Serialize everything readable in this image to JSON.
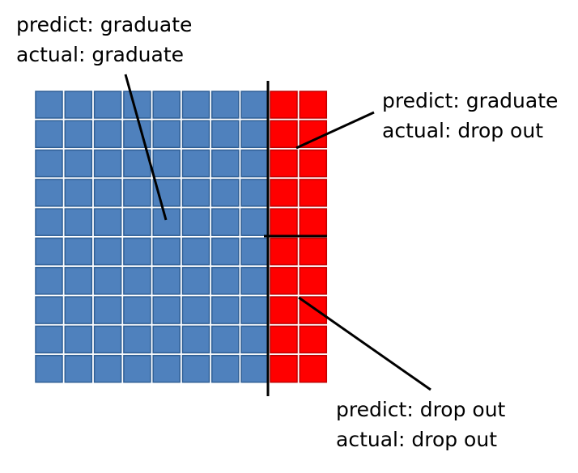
{
  "grid": {
    "rows": 10,
    "blue_columns": 8,
    "red_columns": 2,
    "colors": {
      "blue_fill": "#4f81bd",
      "blue_stroke": "#2f5f95",
      "red_fill": "#ff0000",
      "red_stroke": "#c00000",
      "divider": "#000000",
      "cell_border": "#ffffff"
    }
  },
  "annotations": {
    "top_left": {
      "predict": "predict: graduate",
      "actual": "actual: graduate"
    },
    "top_right": {
      "predict": "predict: graduate",
      "actual": "actual: drop out"
    },
    "bottom_right": {
      "predict": "predict: drop out",
      "actual": "actual: drop out"
    }
  }
}
